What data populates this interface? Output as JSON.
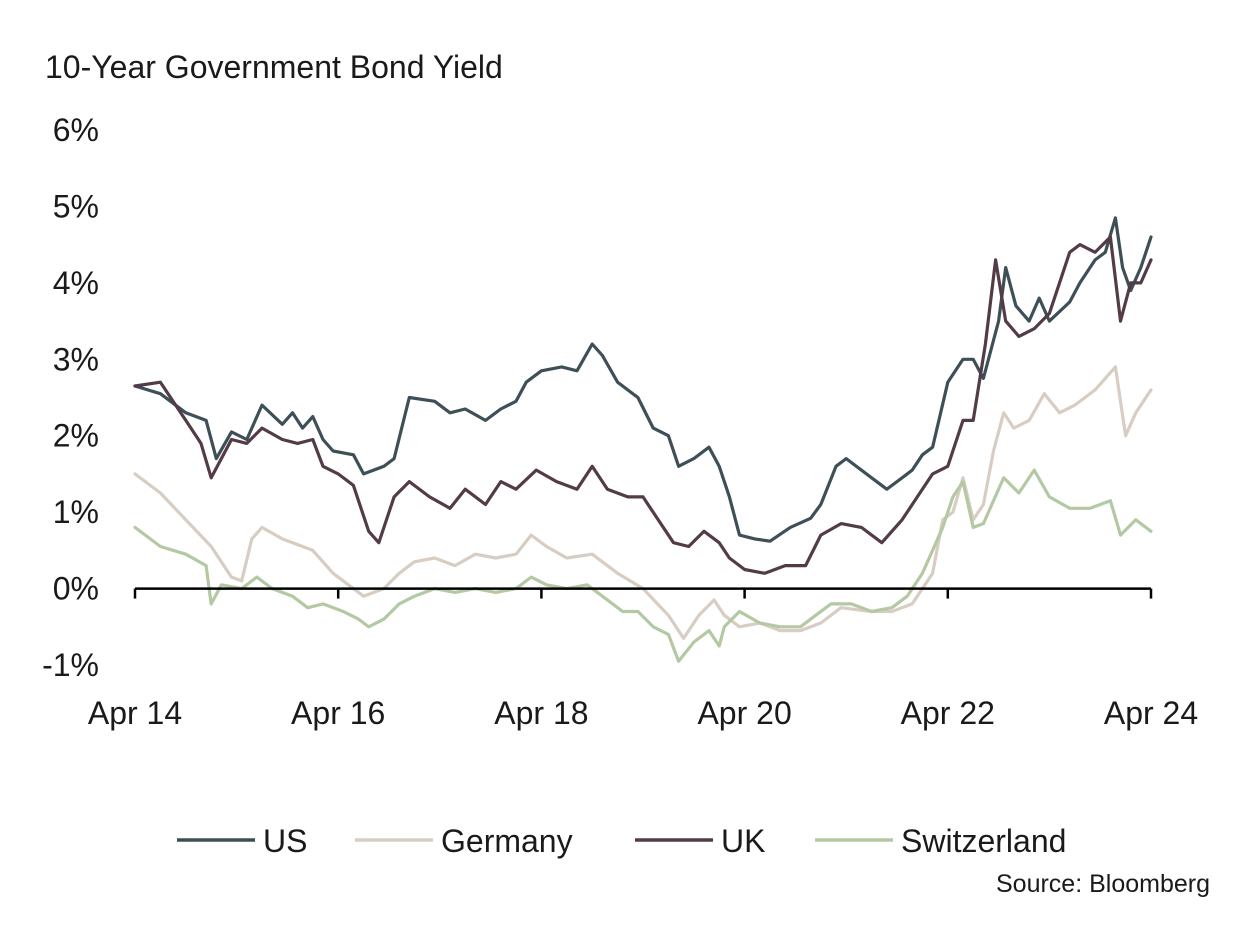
{
  "chart_data": {
    "type": "line",
    "title": "10-Year Government Bond Yield",
    "source": "Source: Bloomberg",
    "x_range": [
      "Apr 14",
      "Apr 24"
    ],
    "ylim": [
      -1,
      6
    ],
    "y_ticks": [
      6,
      5,
      4,
      3,
      2,
      1,
      0,
      -1
    ],
    "y_tick_labels": [
      "6%",
      "5%",
      "4%",
      "3%",
      "2%",
      "1%",
      "0%",
      "-1%"
    ],
    "x_ticks": [
      2014.25,
      2016.25,
      2018.25,
      2020.25,
      2022.25,
      2024.25
    ],
    "x_tick_labels": [
      "Apr 14",
      "Apr 16",
      "Apr 18",
      "Apr 20",
      "Apr 22",
      "Apr 24"
    ],
    "grid": false,
    "legend_position": "bottom",
    "series": [
      {
        "name": "US",
        "color": "#3e4f57",
        "points": [
          [
            2014.25,
            2.65
          ],
          [
            2014.5,
            2.55
          ],
          [
            2014.75,
            2.3
          ],
          [
            2014.95,
            2.2
          ],
          [
            2015.05,
            1.7
          ],
          [
            2015.2,
            2.05
          ],
          [
            2015.35,
            1.95
          ],
          [
            2015.5,
            2.4
          ],
          [
            2015.7,
            2.15
          ],
          [
            2015.8,
            2.3
          ],
          [
            2015.9,
            2.1
          ],
          [
            2016.0,
            2.25
          ],
          [
            2016.1,
            1.95
          ],
          [
            2016.2,
            1.8
          ],
          [
            2016.4,
            1.75
          ],
          [
            2016.5,
            1.5
          ],
          [
            2016.7,
            1.6
          ],
          [
            2016.8,
            1.7
          ],
          [
            2016.95,
            2.5
          ],
          [
            2017.2,
            2.45
          ],
          [
            2017.35,
            2.3
          ],
          [
            2017.5,
            2.35
          ],
          [
            2017.7,
            2.2
          ],
          [
            2017.85,
            2.35
          ],
          [
            2018.0,
            2.45
          ],
          [
            2018.1,
            2.7
          ],
          [
            2018.25,
            2.85
          ],
          [
            2018.45,
            2.9
          ],
          [
            2018.6,
            2.85
          ],
          [
            2018.75,
            3.2
          ],
          [
            2018.85,
            3.05
          ],
          [
            2019.0,
            2.7
          ],
          [
            2019.2,
            2.5
          ],
          [
            2019.35,
            2.1
          ],
          [
            2019.5,
            2.0
          ],
          [
            2019.6,
            1.6
          ],
          [
            2019.75,
            1.7
          ],
          [
            2019.9,
            1.85
          ],
          [
            2020.0,
            1.6
          ],
          [
            2020.1,
            1.2
          ],
          [
            2020.2,
            0.7
          ],
          [
            2020.35,
            0.65
          ],
          [
            2020.5,
            0.62
          ],
          [
            2020.7,
            0.8
          ],
          [
            2020.9,
            0.92
          ],
          [
            2021.0,
            1.1
          ],
          [
            2021.15,
            1.6
          ],
          [
            2021.25,
            1.7
          ],
          [
            2021.5,
            1.45
          ],
          [
            2021.65,
            1.3
          ],
          [
            2021.8,
            1.45
          ],
          [
            2021.9,
            1.55
          ],
          [
            2022.0,
            1.75
          ],
          [
            2022.1,
            1.85
          ],
          [
            2022.25,
            2.7
          ],
          [
            2022.4,
            3.0
          ],
          [
            2022.5,
            3.0
          ],
          [
            2022.6,
            2.75
          ],
          [
            2022.75,
            3.5
          ],
          [
            2022.82,
            4.2
          ],
          [
            2022.92,
            3.7
          ],
          [
            2023.05,
            3.5
          ],
          [
            2023.15,
            3.8
          ],
          [
            2023.25,
            3.5
          ],
          [
            2023.45,
            3.75
          ],
          [
            2023.55,
            4.0
          ],
          [
            2023.7,
            4.3
          ],
          [
            2023.8,
            4.4
          ],
          [
            2023.9,
            4.85
          ],
          [
            2023.97,
            4.2
          ],
          [
            2024.05,
            3.9
          ],
          [
            2024.15,
            4.2
          ],
          [
            2024.25,
            4.6
          ]
        ]
      },
      {
        "name": "Germany",
        "color": "#d8cdc2",
        "points": [
          [
            2014.25,
            1.5
          ],
          [
            2014.5,
            1.25
          ],
          [
            2014.75,
            0.9
          ],
          [
            2015.0,
            0.55
          ],
          [
            2015.2,
            0.15
          ],
          [
            2015.3,
            0.1
          ],
          [
            2015.4,
            0.65
          ],
          [
            2015.5,
            0.8
          ],
          [
            2015.7,
            0.65
          ],
          [
            2015.9,
            0.55
          ],
          [
            2016.0,
            0.5
          ],
          [
            2016.2,
            0.2
          ],
          [
            2016.35,
            0.05
          ],
          [
            2016.5,
            -0.1
          ],
          [
            2016.7,
            0.0
          ],
          [
            2016.85,
            0.2
          ],
          [
            2017.0,
            0.35
          ],
          [
            2017.2,
            0.4
          ],
          [
            2017.4,
            0.3
          ],
          [
            2017.6,
            0.45
          ],
          [
            2017.8,
            0.4
          ],
          [
            2018.0,
            0.45
          ],
          [
            2018.15,
            0.7
          ],
          [
            2018.3,
            0.55
          ],
          [
            2018.5,
            0.4
          ],
          [
            2018.75,
            0.45
          ],
          [
            2019.0,
            0.2
          ],
          [
            2019.25,
            0.0
          ],
          [
            2019.5,
            -0.35
          ],
          [
            2019.65,
            -0.65
          ],
          [
            2019.8,
            -0.35
          ],
          [
            2019.95,
            -0.15
          ],
          [
            2020.05,
            -0.35
          ],
          [
            2020.2,
            -0.5
          ],
          [
            2020.4,
            -0.45
          ],
          [
            2020.6,
            -0.55
          ],
          [
            2020.8,
            -0.55
          ],
          [
            2021.0,
            -0.45
          ],
          [
            2021.2,
            -0.25
          ],
          [
            2021.5,
            -0.3
          ],
          [
            2021.7,
            -0.3
          ],
          [
            2021.9,
            -0.2
          ],
          [
            2022.1,
            0.2
          ],
          [
            2022.2,
            0.9
          ],
          [
            2022.3,
            1.0
          ],
          [
            2022.4,
            1.45
          ],
          [
            2022.5,
            0.9
          ],
          [
            2022.6,
            1.1
          ],
          [
            2022.7,
            1.8
          ],
          [
            2022.8,
            2.3
          ],
          [
            2022.9,
            2.1
          ],
          [
            2023.05,
            2.2
          ],
          [
            2023.2,
            2.55
          ],
          [
            2023.35,
            2.3
          ],
          [
            2023.5,
            2.4
          ],
          [
            2023.7,
            2.6
          ],
          [
            2023.8,
            2.75
          ],
          [
            2023.9,
            2.9
          ],
          [
            2024.0,
            2.0
          ],
          [
            2024.1,
            2.3
          ],
          [
            2024.25,
            2.6
          ]
        ]
      },
      {
        "name": "UK",
        "color": "#533b48",
        "points": [
          [
            2014.25,
            2.65
          ],
          [
            2014.5,
            2.7
          ],
          [
            2014.75,
            2.2
          ],
          [
            2014.9,
            1.9
          ],
          [
            2015.0,
            1.45
          ],
          [
            2015.2,
            1.95
          ],
          [
            2015.35,
            1.9
          ],
          [
            2015.5,
            2.1
          ],
          [
            2015.7,
            1.95
          ],
          [
            2015.85,
            1.9
          ],
          [
            2016.0,
            1.95
          ],
          [
            2016.1,
            1.6
          ],
          [
            2016.25,
            1.5
          ],
          [
            2016.4,
            1.35
          ],
          [
            2016.55,
            0.75
          ],
          [
            2016.65,
            0.6
          ],
          [
            2016.8,
            1.2
          ],
          [
            2016.95,
            1.4
          ],
          [
            2017.15,
            1.2
          ],
          [
            2017.35,
            1.05
          ],
          [
            2017.5,
            1.3
          ],
          [
            2017.7,
            1.1
          ],
          [
            2017.85,
            1.4
          ],
          [
            2018.0,
            1.3
          ],
          [
            2018.2,
            1.55
          ],
          [
            2018.4,
            1.4
          ],
          [
            2018.6,
            1.3
          ],
          [
            2018.75,
            1.6
          ],
          [
            2018.9,
            1.3
          ],
          [
            2019.1,
            1.2
          ],
          [
            2019.25,
            1.2
          ],
          [
            2019.4,
            0.9
          ],
          [
            2019.55,
            0.6
          ],
          [
            2019.7,
            0.55
          ],
          [
            2019.85,
            0.75
          ],
          [
            2020.0,
            0.6
          ],
          [
            2020.1,
            0.4
          ],
          [
            2020.25,
            0.25
          ],
          [
            2020.45,
            0.2
          ],
          [
            2020.65,
            0.3
          ],
          [
            2020.85,
            0.3
          ],
          [
            2021.0,
            0.7
          ],
          [
            2021.2,
            0.85
          ],
          [
            2021.4,
            0.8
          ],
          [
            2021.6,
            0.6
          ],
          [
            2021.8,
            0.9
          ],
          [
            2021.95,
            1.2
          ],
          [
            2022.1,
            1.5
          ],
          [
            2022.25,
            1.6
          ],
          [
            2022.4,
            2.2
          ],
          [
            2022.5,
            2.2
          ],
          [
            2022.62,
            3.2
          ],
          [
            2022.72,
            4.3
          ],
          [
            2022.82,
            3.5
          ],
          [
            2022.95,
            3.3
          ],
          [
            2023.1,
            3.4
          ],
          [
            2023.25,
            3.6
          ],
          [
            2023.45,
            4.4
          ],
          [
            2023.55,
            4.5
          ],
          [
            2023.7,
            4.4
          ],
          [
            2023.85,
            4.6
          ],
          [
            2023.95,
            3.5
          ],
          [
            2024.05,
            4.0
          ],
          [
            2024.15,
            4.0
          ],
          [
            2024.25,
            4.3
          ]
        ]
      },
      {
        "name": "Switzerland",
        "color": "#b4c9a3",
        "points": [
          [
            2014.25,
            0.8
          ],
          [
            2014.5,
            0.55
          ],
          [
            2014.75,
            0.45
          ],
          [
            2014.95,
            0.3
          ],
          [
            2015.0,
            -0.2
          ],
          [
            2015.1,
            0.05
          ],
          [
            2015.3,
            0.0
          ],
          [
            2015.45,
            0.15
          ],
          [
            2015.6,
            0.0
          ],
          [
            2015.8,
            -0.1
          ],
          [
            2015.95,
            -0.25
          ],
          [
            2016.1,
            -0.2
          ],
          [
            2016.3,
            -0.3
          ],
          [
            2016.45,
            -0.4
          ],
          [
            2016.55,
            -0.5
          ],
          [
            2016.7,
            -0.4
          ],
          [
            2016.85,
            -0.2
          ],
          [
            2017.0,
            -0.1
          ],
          [
            2017.2,
            0.0
          ],
          [
            2017.4,
            -0.05
          ],
          [
            2017.6,
            0.0
          ],
          [
            2017.8,
            -0.05
          ],
          [
            2018.0,
            0.0
          ],
          [
            2018.15,
            0.15
          ],
          [
            2018.3,
            0.05
          ],
          [
            2018.5,
            0.0
          ],
          [
            2018.7,
            0.05
          ],
          [
            2018.85,
            -0.1
          ],
          [
            2019.05,
            -0.3
          ],
          [
            2019.2,
            -0.3
          ],
          [
            2019.35,
            -0.5
          ],
          [
            2019.5,
            -0.6
          ],
          [
            2019.6,
            -0.95
          ],
          [
            2019.75,
            -0.7
          ],
          [
            2019.9,
            -0.55
          ],
          [
            2020.0,
            -0.75
          ],
          [
            2020.05,
            -0.5
          ],
          [
            2020.2,
            -0.3
          ],
          [
            2020.4,
            -0.45
          ],
          [
            2020.6,
            -0.5
          ],
          [
            2020.8,
            -0.5
          ],
          [
            2020.95,
            -0.35
          ],
          [
            2021.1,
            -0.2
          ],
          [
            2021.3,
            -0.2
          ],
          [
            2021.5,
            -0.3
          ],
          [
            2021.7,
            -0.25
          ],
          [
            2021.85,
            -0.1
          ],
          [
            2022.0,
            0.2
          ],
          [
            2022.1,
            0.5
          ],
          [
            2022.2,
            0.8
          ],
          [
            2022.3,
            1.2
          ],
          [
            2022.4,
            1.4
          ],
          [
            2022.5,
            0.8
          ],
          [
            2022.6,
            0.85
          ],
          [
            2022.7,
            1.15
          ],
          [
            2022.8,
            1.45
          ],
          [
            2022.95,
            1.25
          ],
          [
            2023.1,
            1.55
          ],
          [
            2023.25,
            1.2
          ],
          [
            2023.45,
            1.05
          ],
          [
            2023.65,
            1.05
          ],
          [
            2023.85,
            1.15
          ],
          [
            2023.95,
            0.7
          ],
          [
            2024.1,
            0.9
          ],
          [
            2024.25,
            0.75
          ]
        ]
      }
    ]
  }
}
